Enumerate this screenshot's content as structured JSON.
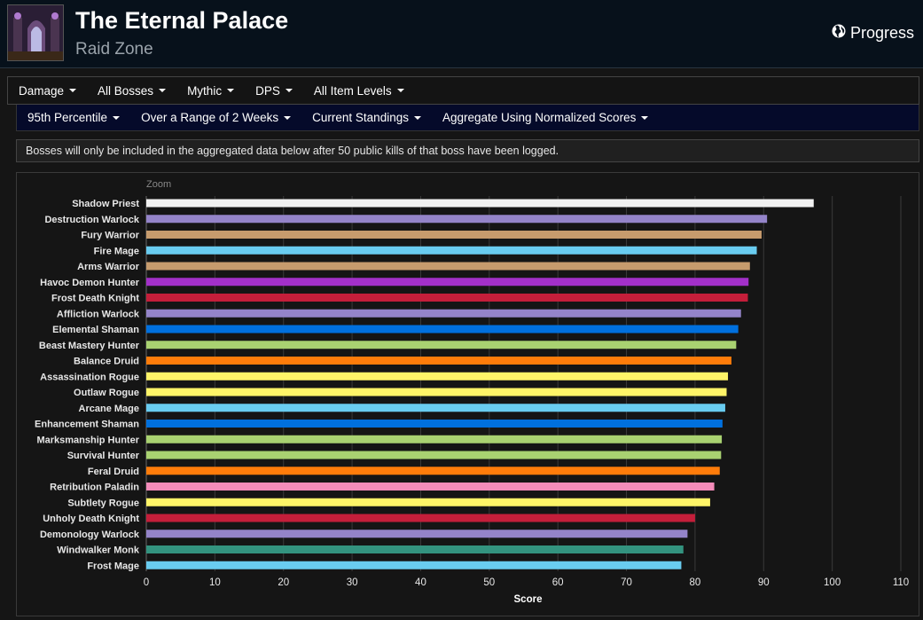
{
  "header": {
    "title": "The Eternal Palace",
    "subtitle": "Raid Zone",
    "progress_label": "Progress"
  },
  "filters_primary": [
    {
      "label": "Damage"
    },
    {
      "label": "All Bosses"
    },
    {
      "label": "Mythic"
    },
    {
      "label": "DPS"
    },
    {
      "label": "All Item Levels"
    }
  ],
  "filters_secondary": [
    {
      "label": "95th Percentile"
    },
    {
      "label": "Over a Range of 2 Weeks"
    },
    {
      "label": "Current Standings"
    },
    {
      "label": "Aggregate Using Normalized Scores"
    }
  ],
  "notice": "Bosses will only be included in the aggregated data below after 50 public kills of that boss have been logged.",
  "chart_data": {
    "type": "bar",
    "orientation": "horizontal",
    "zoom_label": "Zoom",
    "xlabel": "Score",
    "xlim": [
      0,
      110
    ],
    "xticks": [
      0,
      10,
      20,
      30,
      40,
      50,
      60,
      70,
      80,
      90,
      100,
      110
    ],
    "grid": true,
    "categories": [
      "Shadow Priest",
      "Destruction Warlock",
      "Fury Warrior",
      "Fire Mage",
      "Arms Warrior",
      "Havoc Demon Hunter",
      "Frost Death Knight",
      "Affliction Warlock",
      "Elemental Shaman",
      "Beast Mastery Hunter",
      "Balance Druid",
      "Assassination Rogue",
      "Outlaw Rogue",
      "Arcane Mage",
      "Enhancement Shaman",
      "Marksmanship Hunter",
      "Survival Hunter",
      "Feral Druid",
      "Retribution Paladin",
      "Subtlety Rogue",
      "Unholy Death Knight",
      "Demonology Warlock",
      "Windwalker Monk",
      "Frost Mage"
    ],
    "values": [
      97.3,
      90.5,
      89.7,
      89.0,
      88.0,
      87.8,
      87.7,
      86.7,
      86.3,
      86.0,
      85.3,
      84.8,
      84.6,
      84.4,
      84.0,
      83.9,
      83.8,
      83.6,
      82.8,
      82.2,
      80.0,
      78.9,
      78.3,
      78.0
    ],
    "colors": [
      "#f2f2f2",
      "#9484c9",
      "#c69b6d",
      "#69ccf0",
      "#c69b6d",
      "#a330c9",
      "#c41e3a",
      "#9484c9",
      "#0070de",
      "#a9d271",
      "#ff7c0a",
      "#fff468",
      "#fff468",
      "#69ccf0",
      "#0070de",
      "#a9d271",
      "#a9d271",
      "#ff7c0a",
      "#f48cba",
      "#fff468",
      "#c41e3a",
      "#9484c9",
      "#33937f",
      "#69ccf0"
    ]
  }
}
